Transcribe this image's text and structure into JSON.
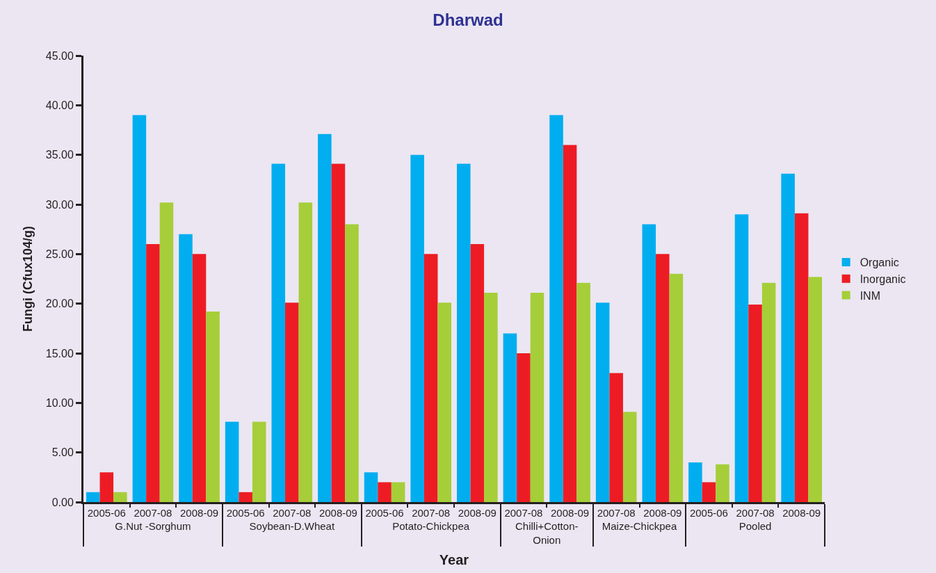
{
  "chart_data": {
    "type": "bar",
    "title": "Dharwad",
    "xlabel": "Year",
    "ylabel": "Fungi (Cfux104/g)",
    "categories": [
      [
        "G.Nut -Sorghum",
        "2005-06"
      ],
      [
        null,
        "2007-08"
      ],
      [
        null,
        "2008-09"
      ],
      [
        "Soybean-D.Wheat",
        "2005-06"
      ],
      [
        null,
        "2007-08"
      ],
      [
        null,
        "2008-09"
      ],
      [
        "Potato-Chickpea",
        "2005-06"
      ],
      [
        null,
        "2007-08"
      ],
      [
        null,
        "2008-09"
      ],
      [
        "Chilli+Cotton-\nOnion",
        "2007-08"
      ],
      [
        null,
        "2008-09"
      ],
      [
        "Maize-Chickpea",
        "2007-08"
      ],
      [
        null,
        "2008-09"
      ],
      [
        "Pooled",
        "2005-06"
      ],
      [
        null,
        "2007-08"
      ],
      [
        null,
        "2008-09"
      ]
    ],
    "series": [
      {
        "name": "Organic",
        "color": "#00aeef",
        "values": [
          1.0,
          39.0,
          27.0,
          8.1,
          34.1,
          37.1,
          3.0,
          35.0,
          34.1,
          17.0,
          39.0,
          20.1,
          28.0,
          4.0,
          29.0,
          33.1
        ]
      },
      {
        "name": "Inorganic",
        "color": "#ed1c24",
        "values": [
          3.0,
          26.0,
          25.0,
          1.0,
          20.1,
          34.1,
          2.0,
          25.0,
          26.0,
          15.0,
          36.0,
          13.0,
          25.0,
          2.0,
          19.9,
          29.1
        ]
      },
      {
        "name": "INM",
        "color": "#a6ce39",
        "values": [
          1.0,
          30.2,
          19.2,
          8.1,
          30.2,
          28.0,
          2.0,
          20.1,
          21.1,
          21.1,
          22.1,
          9.1,
          23.0,
          3.8,
          22.1,
          22.7
        ]
      }
    ],
    "ylim": [
      0,
      45
    ],
    "yticks": [
      {
        "value": 0,
        "label": "0.00"
      },
      {
        "value": 5,
        "label": "5.00"
      },
      {
        "value": 10,
        "label": "10.00"
      },
      {
        "value": 15,
        "label": "15.00"
      },
      {
        "value": 20,
        "label": "20.00"
      },
      {
        "value": 25,
        "label": "25.00"
      },
      {
        "value": 30,
        "label": "30.00"
      },
      {
        "value": 35,
        "label": "35.00"
      },
      {
        "value": 40,
        "label": "40.00"
      },
      {
        "value": 45,
        "label": "45.00"
      }
    ],
    "grid": false,
    "legend": "right"
  }
}
